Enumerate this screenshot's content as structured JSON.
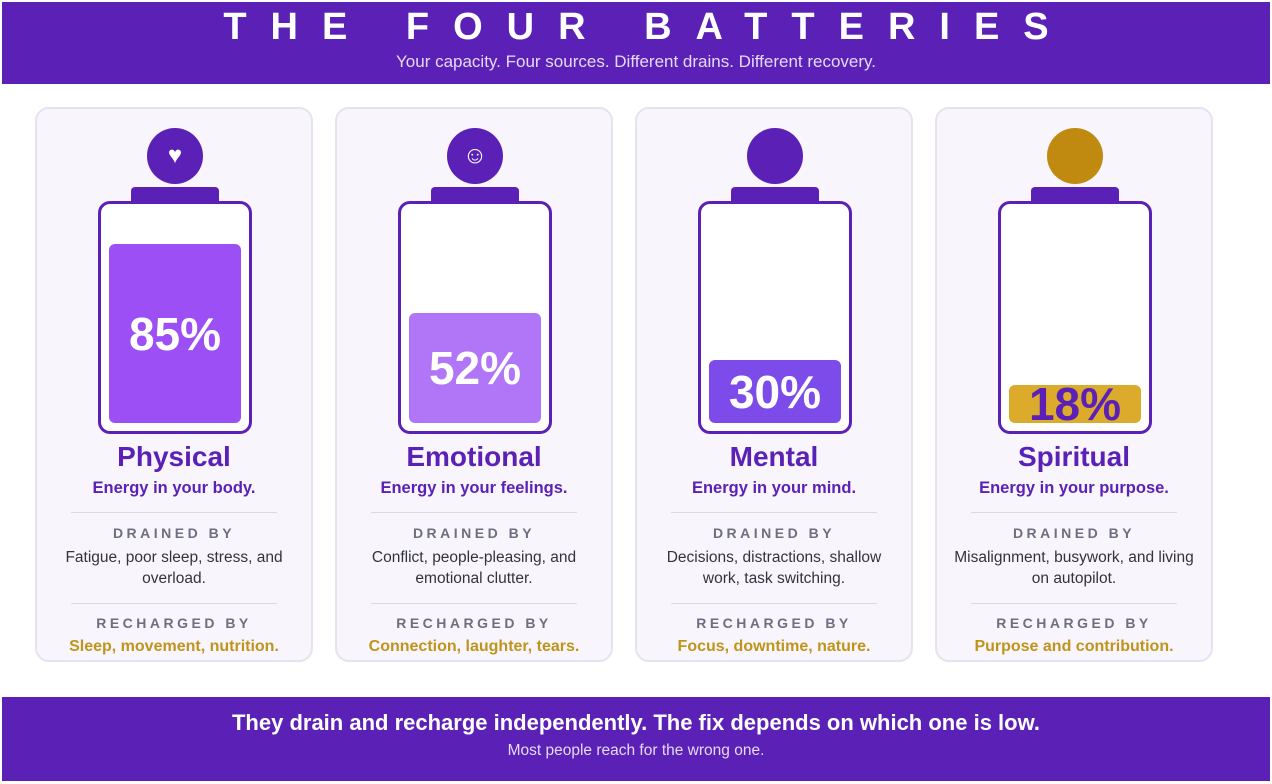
{
  "header": {
    "title": "THE FOUR BATTERIES",
    "subtitle": "Your capacity. Four sources. Different drains. Different recovery."
  },
  "labels": {
    "drained_by": "DRAINED BY",
    "recharged_by": "RECHARGED BY"
  },
  "batteries": [
    {
      "name": "Physical",
      "tagline": "Energy in your body.",
      "level_percent": 85,
      "level_label": "85%",
      "icon": "heart-icon",
      "icon_glyph": "♥",
      "badge_color": "#5b21b6",
      "fill_color": "#9b4ff4",
      "label_color": "#ffffff",
      "drains": "Fatigue, poor sleep, stress, and overload.",
      "recharge": "Sleep, movement, nutrition."
    },
    {
      "name": "Emotional",
      "tagline": "Energy in your feelings.",
      "level_percent": 52,
      "level_label": "52%",
      "icon": "smiley-icon",
      "icon_glyph": "☺",
      "badge_color": "#5b21b6",
      "fill_color": "#b076f7",
      "label_color": "#ffffff",
      "drains": "Conflict, people-pleasing, and emotional clutter.",
      "recharge": "Connection, laughter, tears."
    },
    {
      "name": "Mental",
      "tagline": "Energy in your mind.",
      "level_percent": 30,
      "level_label": "30%",
      "icon": "circle-icon",
      "icon_glyph": "",
      "badge_color": "#5b21b6",
      "fill_color": "#7c4bea",
      "label_color": "#ffffff",
      "drains": "Decisions, distractions, shallow work, task switching.",
      "recharge": "Focus, downtime, nature."
    },
    {
      "name": "Spiritual",
      "tagline": "Energy in your purpose.",
      "level_percent": 18,
      "level_label": "18%",
      "icon": "circle-icon",
      "icon_glyph": "",
      "badge_color": "#bf8a0f",
      "fill_color": "#dcab2c",
      "label_color": "#5b21b6",
      "drains": "Misalignment, busywork, and living on autopilot.",
      "recharge": "Purpose and contribution."
    }
  ],
  "footer": {
    "headline": "They drain and recharge independently. The fix depends on which one is low.",
    "note": "Most people reach for the wrong one."
  }
}
